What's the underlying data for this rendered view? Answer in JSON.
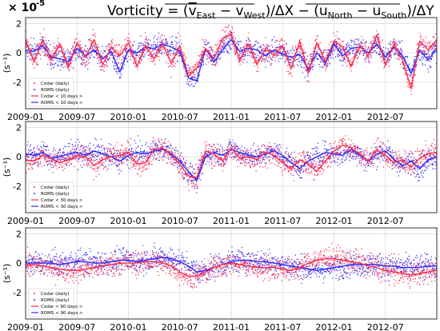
{
  "title": "Vorticity = (v̅East − v̅West)/ΔX − (u̅North − u̅South)/ΔY",
  "title_parts": {
    "prefix": "Vorticity = (",
    "v_east": "v",
    "v_east_sub": "East",
    "minus1": " − ",
    "v_west": "v",
    "v_west_sub": "West",
    "mid": ")/ΔX − (",
    "u_north": "u",
    "u_north_sub": "North",
    "minus2": " − ",
    "u_south": "u",
    "u_south_sub": "South",
    "suffix": ")/ΔY"
  },
  "scale_label": "× 10",
  "scale_exp": "-5",
  "colors": {
    "codar": "#ff2a4a",
    "roms": "#2b2bff",
    "grid": "#cfcfcf"
  },
  "chart_data": [
    {
      "type": "line",
      "ylabel": "(s⁻¹)",
      "ylim": [
        -3.8,
        2.4
      ],
      "yticks": [
        -2,
        0,
        2
      ],
      "xticks": [
        "2009-01",
        "2009-07",
        "2010-01",
        "2010-07",
        "2011-01",
        "2011-07",
        "2012-01",
        "2012-07"
      ],
      "xlim_months": [
        0,
        48
      ],
      "grid": true,
      "legend_position": "bottom-left",
      "legend": [
        "Codar (daily)",
        "ROMS (daily)",
        "Codar < 10 days >",
        "ROMS < 10 days >"
      ],
      "x_months": [
        0,
        1,
        2,
        3,
        4,
        5,
        6,
        7,
        8,
        9,
        10,
        11,
        12,
        13,
        14,
        15,
        16,
        17,
        18,
        19,
        20,
        21,
        22,
        23,
        24,
        25,
        26,
        27,
        28,
        29,
        30,
        31,
        32,
        33,
        34,
        35,
        36,
        37,
        38,
        39,
        40,
        41,
        42,
        43,
        44,
        45,
        46,
        47,
        48
      ],
      "series": [
        {
          "name": "Codar < 10 days >",
          "values": [
            0.8,
            -0.6,
            0.9,
            -0.5,
            0.6,
            -1.0,
            0.7,
            -0.3,
            0.9,
            -0.8,
            0.4,
            -0.2,
            0.7,
            -0.9,
            0.5,
            -0.4,
            0.6,
            -0.7,
            0.5,
            -1.6,
            -1.0,
            0.3,
            -0.4,
            1.0,
            1.3,
            -0.5,
            0.6,
            -0.8,
            0.3,
            -0.2,
            0.5,
            -1.1,
            0.8,
            -1.4,
            0.7,
            -0.6,
            0.8,
            0.4,
            -0.9,
            0.5,
            -0.2,
            1.2,
            -0.8,
            0.6,
            -0.5,
            -2.4,
            0.8,
            0.2,
            0.9
          ]
        },
        {
          "name": "ROMS < 10 days >",
          "values": [
            0.2,
            0.1,
            0.5,
            -0.3,
            -0.4,
            -0.6,
            0.3,
            -0.2,
            0.2,
            -0.4,
            0.1,
            -1.3,
            0.2,
            0.0,
            0.4,
            0.3,
            0.6,
            0.4,
            0.1,
            -1.7,
            -1.9,
            0.3,
            -0.6,
            0.2,
            0.9,
            0.1,
            0.3,
            0.2,
            -0.2,
            0.2,
            -0.1,
            -0.3,
            -0.1,
            -1.1,
            0.0,
            -0.7,
            0.6,
            -0.2,
            0.3,
            0.4,
            0.0,
            0.6,
            -0.3,
            0.4,
            -0.2,
            -1.4,
            0.2,
            -0.5,
            0.3
          ]
        }
      ]
    },
    {
      "type": "line",
      "ylabel": "(s⁻¹)",
      "ylim": [
        -3.8,
        2.4
      ],
      "yticks": [
        -2,
        0,
        2
      ],
      "xticks": [
        "2009-01",
        "2009-07",
        "2010-01",
        "2010-07",
        "2011-01",
        "2011-07",
        "2012-01",
        "2012-07"
      ],
      "xlim_months": [
        0,
        48
      ],
      "grid": true,
      "legend_position": "bottom-left",
      "legend": [
        "Codar (daily)",
        "ROMS (daily)",
        "Codar < 30 days >",
        "ROMS < 30 days >"
      ],
      "x_months": [
        0,
        1,
        2,
        3,
        4,
        5,
        6,
        7,
        8,
        9,
        10,
        11,
        12,
        13,
        14,
        15,
        16,
        17,
        18,
        19,
        20,
        21,
        22,
        23,
        24,
        25,
        26,
        27,
        28,
        29,
        30,
        31,
        32,
        33,
        34,
        35,
        36,
        37,
        38,
        39,
        40,
        41,
        42,
        43,
        44,
        45,
        46,
        47,
        48
      ],
      "series": [
        {
          "name": "Codar < 30 days >",
          "values": [
            -0.2,
            -0.3,
            0.1,
            -0.1,
            -0.4,
            -0.2,
            0.1,
            0.0,
            -0.6,
            -0.2,
            0.0,
            0.1,
            0.3,
            -0.5,
            -0.4,
            0.5,
            0.6,
            0.1,
            -0.5,
            -1.3,
            -1.4,
            0.4,
            0.2,
            -0.3,
            0.6,
            -0.1,
            0.0,
            -0.2,
            0.3,
            0.1,
            -0.4,
            -0.8,
            -0.2,
            -0.5,
            -1.0,
            -0.3,
            0.4,
            0.8,
            0.6,
            0.2,
            -0.3,
            0.5,
            0.1,
            -0.4,
            -0.2,
            -0.7,
            -0.1,
            0.2,
            0.3
          ]
        },
        {
          "name": "ROMS < 30 days >",
          "values": [
            0.2,
            0.1,
            0.3,
            -0.1,
            0.0,
            0.2,
            0.3,
            0.1,
            0.4,
            0.2,
            0.0,
            -0.3,
            0.1,
            0.3,
            0.2,
            0.4,
            0.5,
            0.2,
            -0.3,
            -1.0,
            -1.6,
            0.0,
            0.3,
            0.1,
            0.5,
            0.3,
            0.1,
            0.0,
            0.2,
            0.4,
            0.1,
            -0.4,
            -0.8,
            -0.3,
            0.0,
            0.3,
            0.2,
            0.1,
            0.5,
            0.1,
            -0.3,
            0.2,
            0.4,
            -0.2,
            -0.6,
            -0.3,
            -0.8,
            -0.2,
            0.0
          ]
        }
      ]
    },
    {
      "type": "line",
      "ylabel": "(s⁻¹)",
      "ylim": [
        -3.8,
        2.4
      ],
      "yticks": [
        -2,
        0,
        2
      ],
      "xticks": [
        "2009-01",
        "2009-07",
        "2010-01",
        "2010-07",
        "2011-01",
        "2011-07",
        "2012-01",
        "2012-07"
      ],
      "xlim_months": [
        0,
        48
      ],
      "grid": true,
      "legend_position": "bottom-left",
      "legend": [
        "Codar (daily)",
        "ROMS (daily)",
        "Codar < 90 days >",
        "ROMS < 90 days >"
      ],
      "x_months": [
        0,
        1,
        2,
        3,
        4,
        5,
        6,
        7,
        8,
        9,
        10,
        11,
        12,
        13,
        14,
        15,
        16,
        17,
        18,
        19,
        20,
        21,
        22,
        23,
        24,
        25,
        26,
        27,
        28,
        29,
        30,
        31,
        32,
        33,
        34,
        35,
        36,
        37,
        38,
        39,
        40,
        41,
        42,
        43,
        44,
        45,
        46,
        47,
        48
      ],
      "series": [
        {
          "name": "Codar < 90 days >",
          "values": [
            -0.1,
            -0.1,
            -0.2,
            -0.3,
            -0.4,
            -0.5,
            -0.5,
            -0.4,
            -0.3,
            -0.2,
            -0.1,
            0.0,
            0.0,
            0.0,
            0.1,
            0.1,
            0.0,
            -0.2,
            -0.6,
            -0.9,
            -0.9,
            -0.6,
            -0.3,
            -0.1,
            0.0,
            -0.1,
            -0.2,
            -0.3,
            -0.3,
            -0.3,
            -0.4,
            -0.5,
            -0.3,
            0.0,
            0.2,
            0.3,
            0.3,
            0.2,
            0.1,
            0.0,
            -0.2,
            -0.3,
            -0.5,
            -0.6,
            -0.7,
            -0.8,
            -0.7,
            -0.6,
            -0.5
          ]
        },
        {
          "name": "ROMS < 90 days >",
          "values": [
            0.0,
            0.0,
            0.0,
            0.0,
            -0.1,
            0.0,
            0.1,
            0.1,
            0.0,
            0.0,
            0.1,
            0.2,
            0.2,
            0.1,
            0.2,
            0.3,
            0.4,
            0.3,
            0.1,
            -0.2,
            -0.6,
            -0.5,
            -0.3,
            -0.1,
            0.1,
            0.2,
            0.2,
            0.1,
            0.1,
            0.0,
            -0.1,
            -0.2,
            -0.3,
            -0.4,
            -0.5,
            -0.4,
            -0.3,
            -0.2,
            -0.1,
            -0.1,
            -0.1,
            -0.1,
            -0.2,
            -0.2,
            -0.3,
            -0.3,
            -0.3,
            -0.2,
            -0.2
          ]
        }
      ]
    }
  ]
}
